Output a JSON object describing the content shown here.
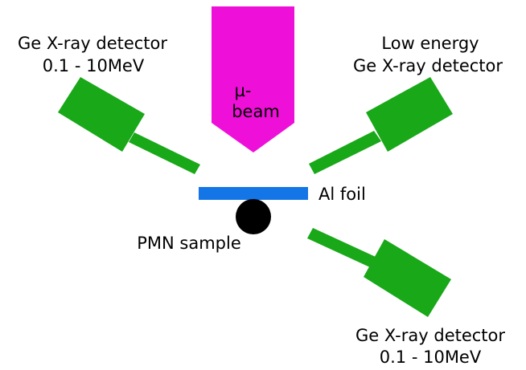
{
  "colors": {
    "detector": "#18a818",
    "beam": "#ee10d8",
    "foil": "#1475e6",
    "sample": "#000000",
    "text": "#000000",
    "background": "#ffffff"
  },
  "beam": {
    "line1": "µ-",
    "line2": "beam"
  },
  "foil": {
    "label": "Al foil"
  },
  "sample": {
    "label": "PMN sample"
  },
  "detectors": [
    {
      "id": "top-left",
      "line1": "Ge X-ray detector",
      "line2": "0.1 - 10MeV"
    },
    {
      "id": "top-right",
      "line1": "Low energy",
      "line2": "Ge X-ray detector"
    },
    {
      "id": "bottom-right",
      "line1": "Ge X-ray detector",
      "line2": "0.1 - 10MeV"
    }
  ]
}
